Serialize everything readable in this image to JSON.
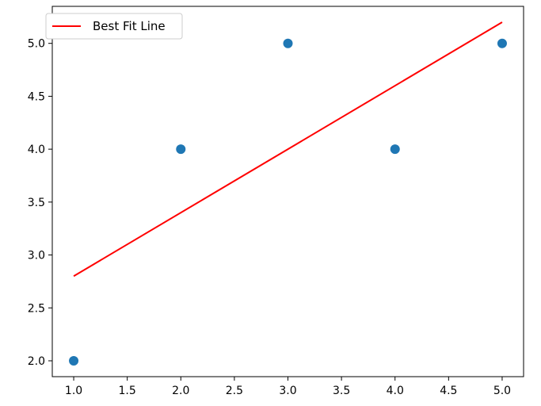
{
  "chart_data": {
    "type": "scatter",
    "title": "",
    "xlabel": "",
    "ylabel": "",
    "xlim": [
      0.8,
      5.2
    ],
    "ylim": [
      1.85,
      5.35
    ],
    "xticks": [
      "1.0",
      "1.5",
      "2.0",
      "2.5",
      "3.0",
      "3.5",
      "4.0",
      "4.5",
      "5.0"
    ],
    "yticks": [
      "2.0",
      "2.5",
      "3.0",
      "3.5",
      "4.0",
      "4.5",
      "5.0"
    ],
    "grid": false,
    "legend_position": "top-left",
    "series": [
      {
        "type": "scatter",
        "color": "#1f77b4",
        "x": [
          1,
          2,
          3,
          4,
          5
        ],
        "y": [
          2,
          4,
          5,
          4,
          5
        ]
      },
      {
        "type": "line",
        "name": "Best Fit Line",
        "color": "#ff0000",
        "x": [
          1,
          5
        ],
        "y": [
          2.8,
          5.2
        ]
      }
    ]
  }
}
